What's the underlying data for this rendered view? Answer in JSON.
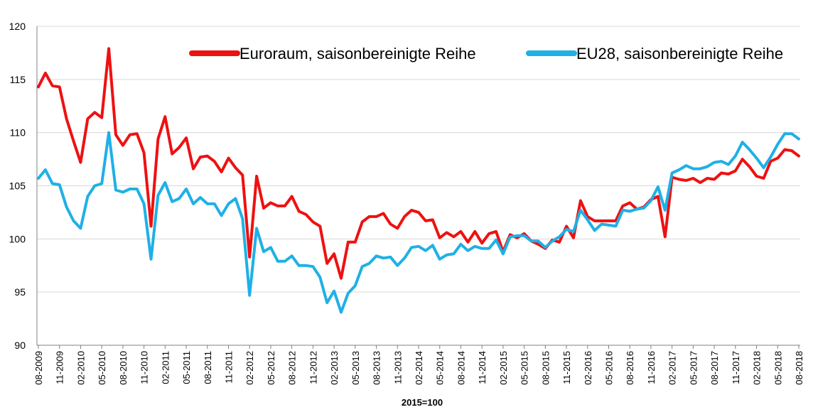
{
  "chart_data": {
    "type": "line",
    "xlabel": "2015=100",
    "ylabel": "",
    "ylim": [
      90,
      120
    ],
    "yticks": [
      90,
      95,
      100,
      105,
      110,
      115,
      120
    ],
    "grid": "horizontal",
    "legend": "top-right",
    "x_tick_labels": [
      "08-2009",
      "11-2009",
      "02-2010",
      "05-2010",
      "08-2010",
      "11-2010",
      "02-2011",
      "05-2011",
      "08-2011",
      "11-2011",
      "02-2012",
      "05-2012",
      "08-2012",
      "11-2012",
      "02-2013",
      "05-2013",
      "08-2013",
      "11-2013",
      "02-2014",
      "05-2014",
      "08-2014",
      "11-2014",
      "02-2015",
      "05-2015",
      "08-2015",
      "11-2015",
      "02-2016",
      "05-2016",
      "08-2016",
      "11-2016",
      "02-2017",
      "05-2017",
      "08-2017",
      "11-2017",
      "02-2018",
      "05-2018",
      "08-2018"
    ],
    "series": [
      {
        "name": "Euroraum, saisonbereinigte Reihe",
        "color": "#ee1111",
        "values": [
          114.3,
          115.6,
          114.4,
          114.3,
          111.3,
          109.2,
          107.2,
          111.3,
          111.9,
          111.4,
          117.9,
          109.8,
          108.8,
          109.8,
          109.9,
          108.1,
          101.2,
          109.4,
          111.5,
          108.0,
          108.6,
          109.5,
          106.6,
          107.7,
          107.8,
          107.3,
          106.3,
          107.6,
          106.7,
          106.0,
          98.3,
          105.9,
          102.9,
          103.4,
          103.1,
          103.1,
          104.0,
          102.6,
          102.3,
          101.6,
          101.2,
          97.7,
          98.6,
          96.3,
          99.7,
          99.7,
          101.6,
          102.1,
          102.1,
          102.4,
          101.4,
          101.0,
          102.1,
          102.7,
          102.5,
          101.7,
          101.8,
          100.1,
          100.6,
          100.2,
          100.7,
          99.7,
          100.7,
          99.6,
          100.5,
          100.7,
          98.8,
          100.4,
          100.1,
          100.5,
          99.8,
          99.5,
          99.1,
          99.9,
          99.7,
          101.2,
          100.1,
          103.6,
          102.1,
          101.7,
          101.7,
          101.7,
          101.7,
          103.1,
          103.4,
          102.8,
          103.0,
          103.7,
          104.0,
          100.2,
          105.8,
          105.6,
          105.5,
          105.7,
          105.3,
          105.7,
          105.6,
          106.2,
          106.1,
          106.4,
          107.5,
          106.8,
          105.9,
          105.7,
          107.3,
          107.6,
          108.4,
          108.3,
          107.8
        ]
      },
      {
        "name": "EU28, saisonbereinigte Reihe",
        "color": "#1fb0e6",
        "values": [
          105.7,
          106.5,
          105.2,
          105.1,
          103.0,
          101.7,
          101.0,
          104.0,
          105.0,
          105.2,
          110.0,
          104.6,
          104.4,
          104.7,
          104.7,
          103.3,
          98.1,
          104.1,
          105.3,
          103.5,
          103.8,
          104.7,
          103.3,
          103.9,
          103.3,
          103.3,
          102.2,
          103.3,
          103.8,
          101.9,
          94.7,
          101.0,
          98.8,
          99.2,
          97.9,
          97.9,
          98.4,
          97.5,
          97.5,
          97.4,
          96.4,
          94.0,
          95.1,
          93.1,
          94.9,
          95.6,
          97.4,
          97.7,
          98.4,
          98.2,
          98.3,
          97.5,
          98.2,
          99.2,
          99.3,
          98.9,
          99.4,
          98.1,
          98.5,
          98.6,
          99.5,
          98.9,
          99.3,
          99.1,
          99.1,
          99.9,
          98.6,
          100.2,
          100.3,
          100.3,
          99.8,
          99.8,
          99.2,
          99.8,
          100.2,
          100.9,
          100.7,
          102.7,
          101.8,
          100.8,
          101.4,
          101.3,
          101.2,
          102.7,
          102.6,
          102.8,
          102.9,
          103.6,
          104.9,
          102.7,
          106.2,
          106.5,
          106.9,
          106.6,
          106.6,
          106.8,
          107.2,
          107.3,
          107.0,
          107.8,
          109.1,
          108.4,
          107.6,
          106.7,
          107.7,
          108.9,
          109.9,
          109.9,
          109.4
        ]
      }
    ]
  }
}
